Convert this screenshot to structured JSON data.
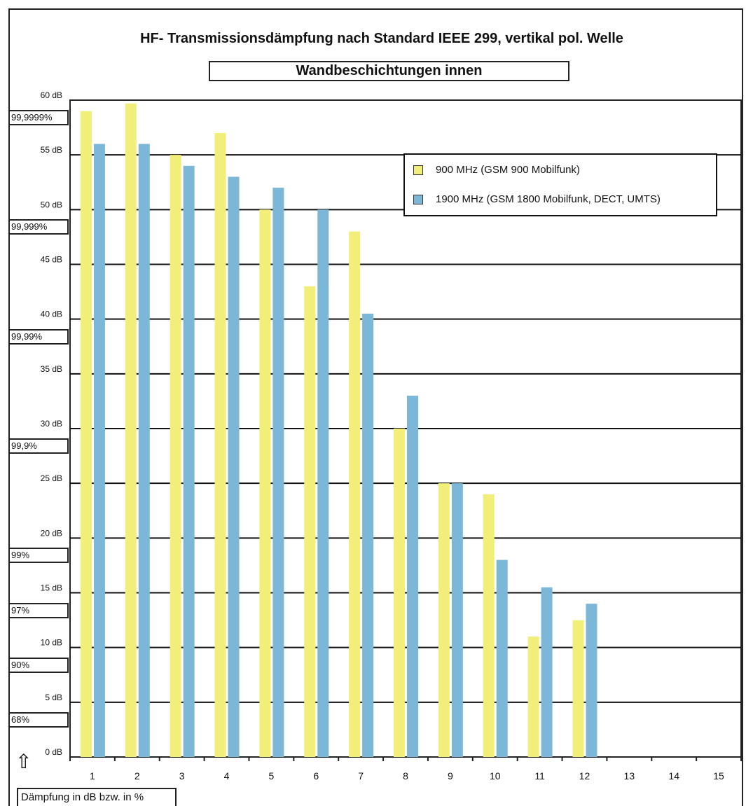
{
  "chart_data": {
    "type": "bar",
    "title": "HF- Transmissionsdämpfung nach Standard IEEE 299, vertikal pol. Welle",
    "subtitle": "Wandbeschichtungen innen",
    "ylabel": "Dämpfung in dB bzw. in %",
    "categories": [
      "1",
      "2",
      "3",
      "4",
      "5",
      "6",
      "7",
      "8",
      "9",
      "10",
      "11",
      "12",
      "13",
      "14",
      "15"
    ],
    "series": [
      {
        "name": "900 MHz (GSM 900 Mobilfunk)",
        "color": "#f2ee7a",
        "values": [
          59,
          59.7,
          55,
          57,
          50,
          43,
          48,
          30,
          25,
          24,
          11,
          12.5,
          null,
          null,
          null
        ]
      },
      {
        "name": "1900 MHz (GSM 1800 Mobilfunk, DECT, UMTS)",
        "color": "#7db7d8",
        "values": [
          56,
          56,
          54,
          53,
          52,
          50,
          40.5,
          33,
          25,
          18,
          15.5,
          14,
          null,
          null,
          null
        ]
      }
    ],
    "ylim": [
      0,
      60
    ],
    "yticks": [
      0,
      5,
      10,
      15,
      20,
      25,
      30,
      35,
      40,
      45,
      50,
      55,
      60
    ],
    "ytick_labels": [
      "0 dB",
      "5 dB",
      "10 dB",
      "15 dB",
      "20 dB",
      "25 dB",
      "30 dB",
      "35 dB",
      "40 dB",
      "45 dB",
      "50 dB",
      "55 dB",
      "60 dB"
    ],
    "percent_labels": [
      {
        "db": 60,
        "label": "99,9999%"
      },
      {
        "db": 50,
        "label": "99,999%"
      },
      {
        "db": 40,
        "label": "99,99%"
      },
      {
        "db": 30,
        "label": "99,9%"
      },
      {
        "db": 20,
        "label": "99%"
      },
      {
        "db": 15,
        "label": "97%"
      },
      {
        "db": 10,
        "label": "90%"
      },
      {
        "db": 5,
        "label": "68%"
      }
    ],
    "grid": true,
    "legend_position": "top-right"
  },
  "icons": {
    "ylabel_marker": "up-arrow-icon"
  }
}
